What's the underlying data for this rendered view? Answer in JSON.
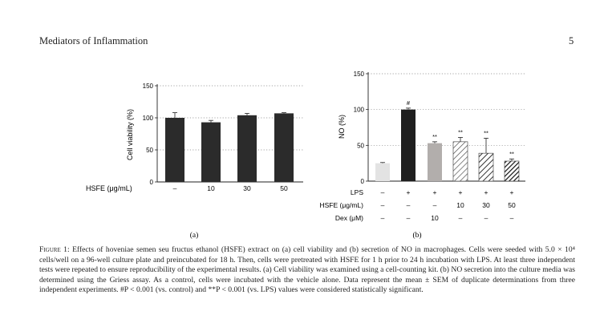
{
  "header": {
    "journal": "Mediators of Inflammation",
    "page": "5"
  },
  "chart_data": [
    {
      "type": "bar",
      "panel_label": "(a)",
      "ylabel": "Cell viability (%)",
      "ylim": [
        0,
        150
      ],
      "yticks": [
        "0",
        "50",
        "100",
        "150"
      ],
      "row_label": "HSFE (μg/mL)",
      "categories": [
        "–",
        "10",
        "30",
        "50"
      ],
      "values": [
        100,
        93,
        104,
        107
      ],
      "errors": [
        8,
        3,
        3,
        1
      ],
      "grid": "dotted horizontal",
      "bar_color": "#2b2b2b"
    },
    {
      "type": "bar",
      "panel_label": "(b)",
      "ylabel": "NO (%)",
      "ylim": [
        0,
        150
      ],
      "yticks": [
        "0",
        "50",
        "100",
        "150"
      ],
      "rows": [
        {
          "label": "LPS",
          "values": [
            "–",
            "+",
            "+",
            "+",
            "+",
            "+"
          ]
        },
        {
          "label": "HSFE (μg/mL)",
          "values": [
            "–",
            "–",
            "–",
            "10",
            "30",
            "50"
          ]
        },
        {
          "label": "Dex (μM)",
          "values": [
            "–",
            "–",
            "10",
            "–",
            "–",
            "–"
          ]
        }
      ],
      "values": [
        25,
        100,
        53,
        55,
        39,
        28
      ],
      "errors": [
        1,
        2,
        2,
        6,
        21,
        3
      ],
      "annotations": [
        "",
        "#",
        "**",
        "**",
        "**",
        "**"
      ],
      "styles": [
        "light",
        "dark",
        "gray",
        "hatch-light",
        "hatch-mid",
        "hatch-dark"
      ],
      "grid": "dotted horizontal"
    }
  ],
  "caption": {
    "label": "Figure 1:",
    "text": "Effects of hoveniae semen seu fructus ethanol (HSFE) extract on (a) cell viability and (b) secretion of NO in macrophages. Cells were seeded with 5.0 × 10⁴ cells/well on a 96-well culture plate and preincubated for 18 h. Then, cells were pretreated with HSFE for 1 h prior to 24 h incubation with LPS. At least three independent tests were repeated to ensure reproducibility of the experimental results. (a) Cell viability was examined using a cell-counting kit. (b) NO secretion into the culture media was determined using the Griess assay. As a control, cells were incubated with the vehicle alone. Data represent the mean ± SEM of duplicate determinations from three independent experiments. #P < 0.001 (vs. control) and **P < 0.001 (vs. LPS) values were considered statistically significant."
  }
}
